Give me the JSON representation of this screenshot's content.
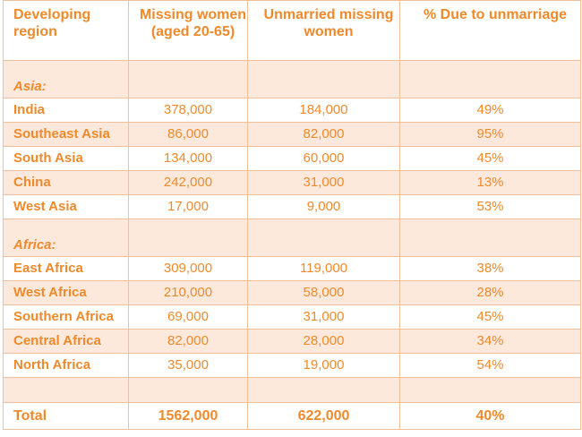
{
  "table": {
    "headers": {
      "region": "Developing region",
      "missing": "Missing women (aged 20-65)",
      "unmarried": "Unmarried missing women",
      "pct": "% Due to unmarriage"
    },
    "sections": [
      {
        "label": "Asia:",
        "rows": [
          {
            "region": "India",
            "missing": "378,000",
            "unmarried": "184,000",
            "pct": "49%"
          },
          {
            "region": "Southeast Asia",
            "missing": "86,000",
            "unmarried": "82,000",
            "pct": "95%"
          },
          {
            "region": "South Asia",
            "missing": "134,000",
            "unmarried": "60,000",
            "pct": "45%"
          },
          {
            "region": "China",
            "missing": "242,000",
            "unmarried": "31,000",
            "pct": "13%"
          },
          {
            "region": "West Asia",
            "missing": "17,000",
            "unmarried": "9,000",
            "pct": "53%"
          }
        ]
      },
      {
        "label": "Africa:",
        "rows": [
          {
            "region": "East Africa",
            "missing": "309,000",
            "unmarried": "119,000",
            "pct": "38%"
          },
          {
            "region": "West Africa",
            "missing": "210,000",
            "unmarried": "58,000",
            "pct": "28%"
          },
          {
            "region": "Southern Africa",
            "missing": "69,000",
            "unmarried": "31,000",
            "pct": "45%"
          },
          {
            "region": "Central Africa",
            "missing": "82,000",
            "unmarried": "28,000",
            "pct": "34%"
          },
          {
            "region": "North Africa",
            "missing": "35,000",
            "unmarried": "19,000",
            "pct": "54%"
          }
        ]
      }
    ],
    "total": {
      "region": "Total",
      "missing": "1562,000",
      "unmarried": "622,000",
      "pct": "40%"
    }
  },
  "colors": {
    "text": "#ee8a2b",
    "border": "#f2bf9b",
    "shade": "#fce9dc"
  }
}
